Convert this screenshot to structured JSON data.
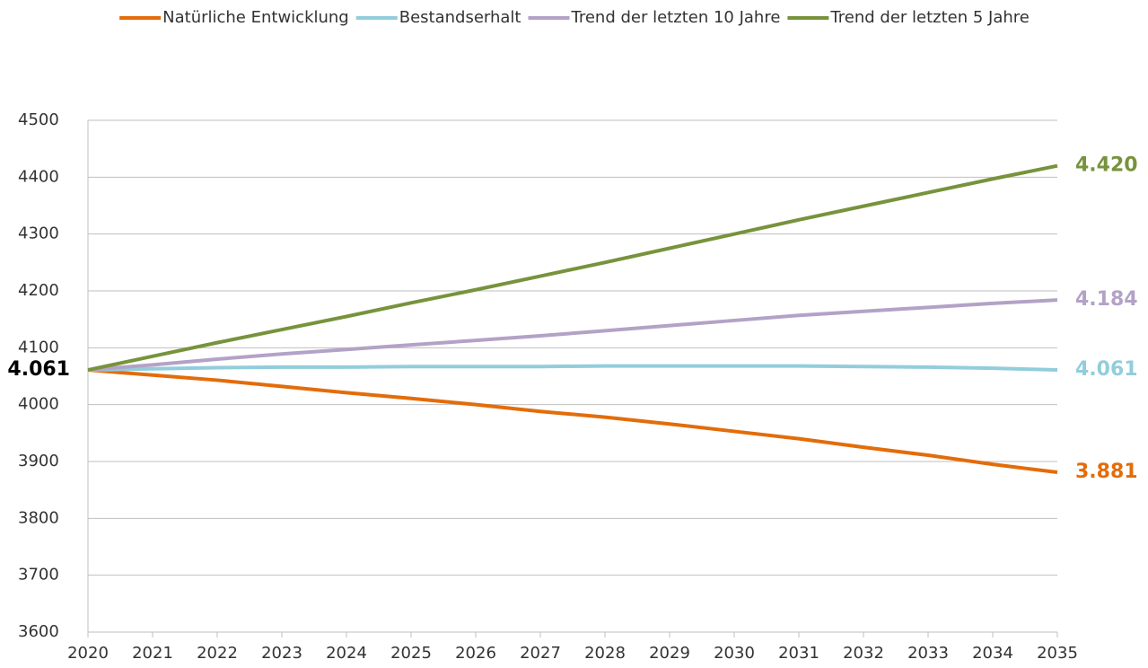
{
  "chart_data": {
    "type": "line",
    "x": [
      2020,
      2021,
      2022,
      2023,
      2024,
      2025,
      2026,
      2027,
      2028,
      2029,
      2030,
      2031,
      2032,
      2033,
      2034,
      2035
    ],
    "xlim": [
      2020,
      2035
    ],
    "xticks": [
      2020,
      2021,
      2022,
      2023,
      2024,
      2025,
      2026,
      2027,
      2028,
      2029,
      2030,
      2031,
      2032,
      2033,
      2034,
      2035
    ],
    "ylim": [
      3600,
      4500
    ],
    "yticks": [
      3600,
      3700,
      3800,
      3900,
      4000,
      4100,
      4200,
      4300,
      4400,
      4500
    ],
    "grid": true,
    "legend": "top",
    "series": [
      {
        "name": "Natürliche Entwicklung",
        "color": "#e36c0a",
        "values": [
          4061,
          4052,
          4043,
          4032,
          4021,
          4011,
          4000,
          3988,
          3978,
          3966,
          3953,
          3940,
          3925,
          3911,
          3895,
          3881
        ]
      },
      {
        "name": "Bestandserhalt",
        "color": "#92cddc",
        "values": [
          4061,
          4063,
          4065,
          4066,
          4066,
          4067,
          4067,
          4067,
          4068,
          4068,
          4068,
          4068,
          4067,
          4066,
          4064,
          4061
        ]
      },
      {
        "name": "Trend der letzten 10 Jahre",
        "color": "#b3a2c7",
        "values": [
          4061,
          4070,
          4080,
          4089,
          4097,
          4105,
          4113,
          4121,
          4130,
          4139,
          4148,
          4157,
          4164,
          4171,
          4178,
          4184
        ]
      },
      {
        "name": "Trend der letzten 5 Jahre",
        "color": "#77933c",
        "values": [
          4061,
          4085,
          4109,
          4132,
          4155,
          4179,
          4202,
          4226,
          4250,
          4275,
          4300,
          4325,
          4349,
          4373,
          4397,
          4420
        ]
      }
    ],
    "annotations": [
      {
        "text": "4.061",
        "x": 2020,
        "y": 4061,
        "color": "#000000",
        "side": "left"
      },
      {
        "text": "4.420",
        "x": 2035,
        "y": 4420,
        "color": "#77933c",
        "side": "right"
      },
      {
        "text": "4.184",
        "x": 2035,
        "y": 4184,
        "color": "#b3a2c7",
        "side": "right"
      },
      {
        "text": "4.061",
        "x": 2035,
        "y": 4061,
        "color": "#92cddc",
        "side": "right"
      },
      {
        "text": "3.881",
        "x": 2035,
        "y": 3881,
        "color": "#e36c0a",
        "side": "right"
      }
    ]
  }
}
